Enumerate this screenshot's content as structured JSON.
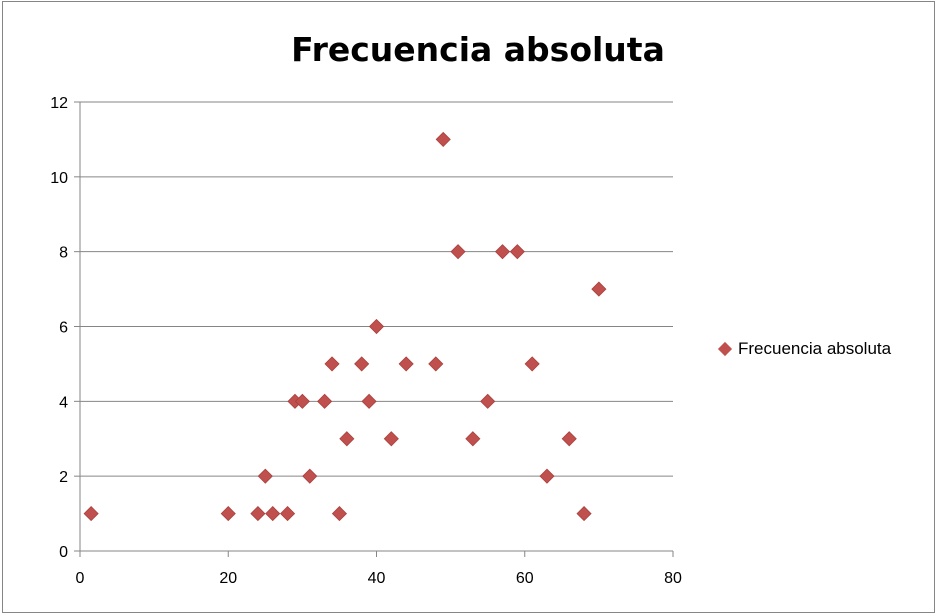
{
  "chart_data": {
    "type": "scatter",
    "title": "Frecuencia absoluta",
    "xlim": [
      0,
      80
    ],
    "ylim": [
      0,
      12
    ],
    "xticks": [
      0,
      20,
      40,
      60,
      80
    ],
    "yticks": [
      0,
      2,
      4,
      6,
      8,
      10,
      12
    ],
    "grid": "horizontal",
    "legend_position": "right",
    "series": [
      {
        "name": "Frecuencia absoluta",
        "color": "#c0504d",
        "marker": "diamond",
        "x": [
          1.5,
          20,
          24,
          25,
          26,
          28,
          29,
          30,
          31,
          33,
          34,
          35,
          36,
          38,
          39,
          40,
          42,
          44,
          48,
          49,
          51,
          53,
          55,
          57,
          59,
          61,
          63,
          66,
          68,
          70
        ],
        "y": [
          1,
          1,
          1,
          2,
          1,
          1,
          4,
          4,
          2,
          4,
          5,
          1,
          3,
          5,
          4,
          6,
          3,
          5,
          5,
          11,
          8,
          3,
          4,
          8,
          8,
          5,
          2,
          3,
          1,
          7
        ]
      }
    ]
  }
}
